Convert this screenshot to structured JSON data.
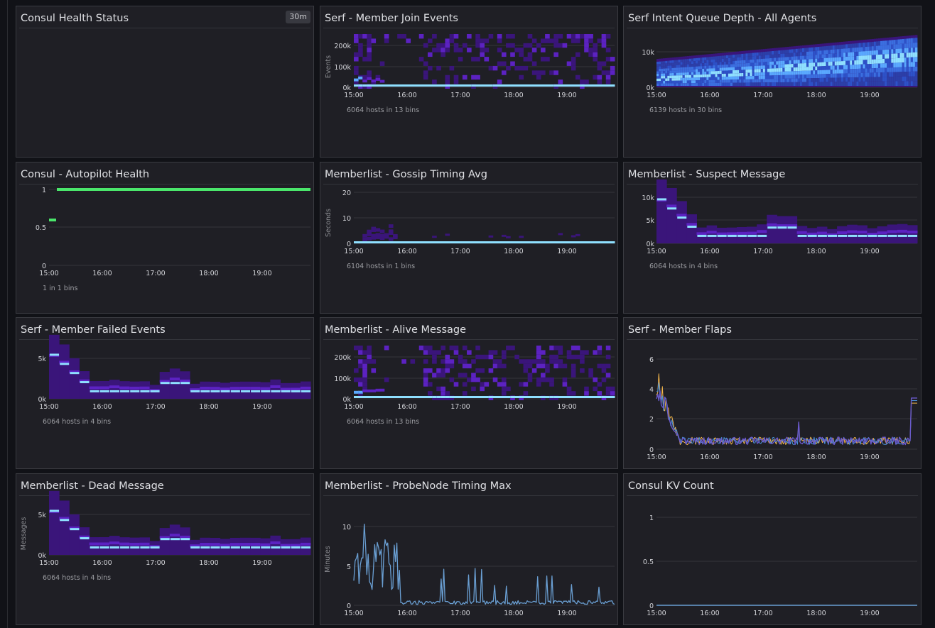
{
  "colors": {
    "background": "#111217",
    "panel": "#1f1f25",
    "heat_low": "#3a157a",
    "heat_mid": "#5c22c2",
    "heat_high": "#5aa9ff",
    "heat_top": "#8fe0ff",
    "line_green": "#4ae66b",
    "line_blue": "#6a9fd3",
    "flap_purple": "#6a5acd",
    "flap_orange": "#f5b74b"
  },
  "panels": [
    {
      "title": "Consul Health Status",
      "badge": "30m"
    },
    {
      "title": "Serf - Member Join Events",
      "ylabel": "Events",
      "footer": "6064 hosts in 13 bins",
      "chart_data": {
        "type": "heatmap",
        "title": "Serf - Member Join Events",
        "ylabel": "Events",
        "x_ticks": [
          "15:00",
          "16:00",
          "17:00",
          "18:00",
          "19:00"
        ],
        "y_ticks": [
          "0k",
          "100k",
          "200k"
        ],
        "ylim": [
          0,
          250000
        ],
        "hosts": 6064,
        "bins": 13,
        "grid": true
      }
    },
    {
      "title": "Serf Intent Queue Depth - All Agents",
      "footer": "6139 hosts in 30 bins",
      "chart_data": {
        "type": "heatmap",
        "title": "Serf Intent Queue Depth - All Agents",
        "x_ticks": [
          "15:00",
          "16:00",
          "17:00",
          "18:00",
          "19:00"
        ],
        "y_ticks": [
          "0k",
          "10k"
        ],
        "ylim": [
          0,
          15000
        ],
        "hosts": 6139,
        "bins": 30,
        "grid": true
      }
    },
    {
      "title": "Consul - Autopilot Health",
      "footer": "1 in 1 bins",
      "chart_data": {
        "type": "line",
        "title": "Consul - Autopilot Health",
        "x_ticks": [
          "15:00",
          "16:00",
          "17:00",
          "18:00",
          "19:00"
        ],
        "y_ticks": [
          "0",
          "0.5",
          "1"
        ],
        "ylim": [
          0,
          1
        ],
        "series": [
          {
            "x": [
              "15:00",
              "15:08"
            ],
            "values": [
              0.6,
              0.6
            ]
          },
          {
            "x": [
              "15:10",
              "19:55"
            ],
            "values": [
              1,
              1
            ]
          }
        ],
        "grid": true
      }
    },
    {
      "title": "Memberlist - Gossip Timing Avg",
      "ylabel": "Seconds",
      "footer": "6104 hosts in 1 bins",
      "chart_data": {
        "type": "heatmap",
        "title": "Memberlist - Gossip Timing Avg",
        "ylabel": "Seconds",
        "x_ticks": [
          "15:00",
          "16:00",
          "17:00",
          "18:00",
          "19:00"
        ],
        "y_ticks": [
          "0",
          "10",
          "20"
        ],
        "ylim": [
          0,
          23
        ],
        "hosts": 6104,
        "bins": 1,
        "grid": true
      }
    },
    {
      "title": "Memberlist - Suspect Message",
      "footer": "6064 hosts in 4 bins",
      "chart_data": {
        "type": "heatmap",
        "title": "Memberlist - Suspect Message",
        "x_ticks": [
          "15:00",
          "16:00",
          "17:00",
          "18:00",
          "19:00"
        ],
        "y_ticks": [
          "0k",
          "5k",
          "10k"
        ],
        "ylim": [
          0,
          12000
        ],
        "hosts": 6064,
        "bins": 4,
        "grid": true
      }
    },
    {
      "title": "Serf - Member Failed Events",
      "footer": "6064 hosts in 4 bins",
      "chart_data": {
        "type": "heatmap",
        "title": "Serf - Member Failed Events",
        "x_ticks": [
          "15:00",
          "16:00",
          "17:00",
          "18:00",
          "19:00"
        ],
        "y_ticks": [
          "0k",
          "5k"
        ],
        "ylim": [
          0,
          8000
        ],
        "hosts": 6064,
        "bins": 4,
        "grid": true
      }
    },
    {
      "title": "Memberlist - Alive Message",
      "footer": "6064 hosts in 13 bins",
      "chart_data": {
        "type": "heatmap",
        "title": "Memberlist - Alive Message",
        "x_ticks": [
          "15:00",
          "16:00",
          "17:00",
          "18:00",
          "19:00"
        ],
        "y_ticks": [
          "0k",
          "100k",
          "200k"
        ],
        "ylim": [
          0,
          250000
        ],
        "hosts": 6064,
        "bins": 13,
        "grid": true
      }
    },
    {
      "title": "Serf - Member Flaps",
      "chart_data": {
        "type": "line",
        "title": "Serf - Member Flaps",
        "x_ticks": [
          "15:00",
          "16:00",
          "17:00",
          "18:00",
          "19:00"
        ],
        "y_ticks": [
          "0",
          "2",
          "4",
          "6"
        ],
        "ylim": [
          0,
          6
        ],
        "grid": true
      }
    },
    {
      "title": "Memberlist - Dead Message",
      "ylabel": "Messages",
      "footer": "6064 hosts in 4 bins",
      "chart_data": {
        "type": "heatmap",
        "title": "Memberlist - Dead Message",
        "ylabel": "Messages",
        "x_ticks": [
          "15:00",
          "16:00",
          "17:00",
          "18:00",
          "19:00"
        ],
        "y_ticks": [
          "0k",
          "5k"
        ],
        "ylim": [
          0,
          8000
        ],
        "hosts": 6064,
        "bins": 4,
        "grid": true
      }
    },
    {
      "title": "Memberlist - ProbeNode Timing Max",
      "ylabel": "Minutes",
      "chart_data": {
        "type": "line",
        "title": "Memberlist - ProbeNode Timing Max",
        "ylabel": "Minutes",
        "x_ticks": [
          "15:00",
          "16:00",
          "17:00",
          "18:00",
          "19:00"
        ],
        "y_ticks": [
          "0",
          "5",
          "10"
        ],
        "ylim": [
          0,
          11.5
        ],
        "grid": true
      }
    },
    {
      "title": "Consul KV Count",
      "chart_data": {
        "type": "line",
        "title": "Consul KV Count",
        "x_ticks": [
          "15:00",
          "16:00",
          "17:00",
          "18:00",
          "19:00"
        ],
        "y_ticks": [
          "0",
          "0.5",
          "1"
        ],
        "ylim": [
          0,
          1
        ],
        "series": [
          {
            "x": [
              "15:00",
              "19:55"
            ],
            "values": [
              0,
              0
            ]
          }
        ],
        "grid": true
      }
    }
  ]
}
